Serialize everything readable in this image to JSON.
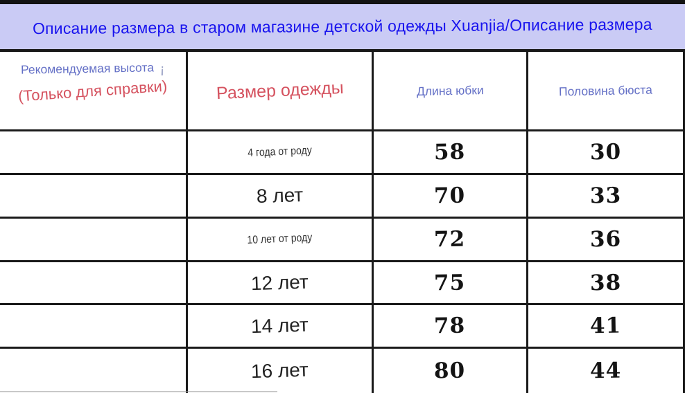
{
  "banner": {
    "title": "Описание размера в старом магазине детской одежды Xuanjia/Описание размера"
  },
  "table": {
    "header": {
      "col1_line1": "Рекомендуемая высота",
      "col1_mark": "¡",
      "col1_line2": "(Только для справки)",
      "col2": "Размер одежды",
      "col3": "Длина юбки",
      "col4": "Половина бюста"
    },
    "rows": [
      {
        "height": "",
        "size": "4 года от роду",
        "skirt_length": "58",
        "half_bust": "30"
      },
      {
        "height": "",
        "size": "8 лет",
        "skirt_length": "70",
        "half_bust": "33"
      },
      {
        "height": "",
        "size": "10 лет от роду",
        "skirt_length": "72",
        "half_bust": "36"
      },
      {
        "height": "",
        "size": "12 лет",
        "skirt_length": "75",
        "half_bust": "38"
      },
      {
        "height": "",
        "size": "14 лет",
        "skirt_length": "78",
        "half_bust": "41"
      },
      {
        "height": "",
        "size": "16 лет",
        "skirt_length": "80",
        "half_bust": "44"
      }
    ]
  },
  "colors": {
    "banner_bg": "#cacbf5",
    "banner_text": "#1813ee",
    "header_blue": "#6470c6",
    "accent_red": "#d5525f",
    "table_border": "#1a1a1a",
    "pen_mark_green": "#2f7d32",
    "number_text": "#141414"
  }
}
